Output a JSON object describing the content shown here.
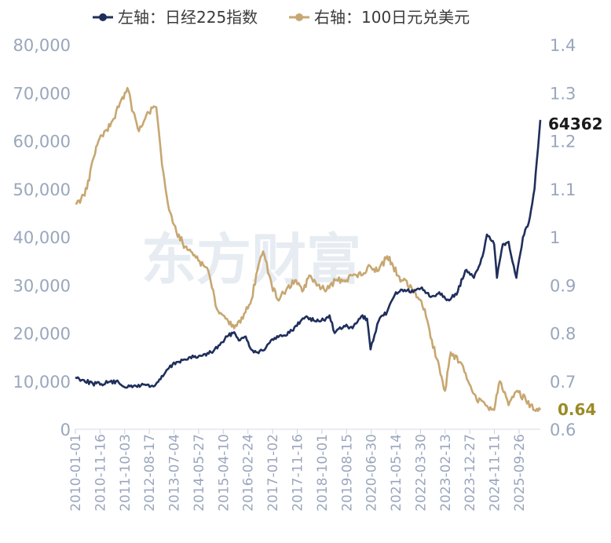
{
  "legend": {
    "left_series": "左轴：日经225指数",
    "right_series": "右轴：100日元兑美元"
  },
  "watermark": "东方财富",
  "end_labels": {
    "left_value": "64362",
    "right_value": "0.64"
  },
  "colors": {
    "nikkei": "#1f2f5c",
    "jpyusd": "#c7a771",
    "axis_text": "#9aa6bd",
    "right_end_label": "#9b8a25"
  },
  "chart_data": {
    "type": "line",
    "title": "",
    "x_tick_labels": [
      "2010-01-01",
      "2010-11-16",
      "2011-10-03",
      "2012-08-17",
      "2013-07-04",
      "2014-05-27",
      "2015-04-10",
      "2016-02-24",
      "2017-01-02",
      "2017-11-16",
      "2018-10-01",
      "2019-08-15",
      "2020-06-30",
      "2021-05-14",
      "2022-03-30",
      "2023-02-13",
      "2023-12-27",
      "2024-11-11",
      "2025-09-26"
    ],
    "left_axis": {
      "min": 0,
      "max": 80000,
      "ticks": [
        "0",
        "10,000",
        "20,000",
        "30,000",
        "40,000",
        "50,000",
        "60,000",
        "70,000",
        "80,000"
      ]
    },
    "right_axis": {
      "min": 0.6,
      "max": 1.4,
      "ticks": [
        "0.6",
        "0.7",
        "0.8",
        "0.9",
        "1",
        "1.1",
        "1.2",
        "1.3",
        "1.4"
      ]
    },
    "series": [
      {
        "name": "左轴：日经225指数",
        "axis": "left",
        "x": [
          2010.0,
          2010.3,
          2010.6,
          2010.9,
          2011.2,
          2011.5,
          2011.8,
          2012.1,
          2012.4,
          2012.7,
          2012.95,
          2013.2,
          2013.5,
          2013.8,
          2014.1,
          2014.4,
          2014.7,
          2015.0,
          2015.3,
          2015.5,
          2015.7,
          2015.9,
          2016.1,
          2016.3,
          2016.6,
          2016.9,
          2017.2,
          2017.5,
          2017.8,
          2018.0,
          2018.3,
          2018.6,
          2018.8,
          2018.98,
          2019.3,
          2019.6,
          2019.9,
          2020.1,
          2020.22,
          2020.5,
          2020.8,
          2021.1,
          2021.4,
          2021.7,
          2022.0,
          2022.3,
          2022.6,
          2022.9,
          2023.2,
          2023.5,
          2023.8,
          2024.1,
          2024.25,
          2024.5,
          2024.6,
          2024.8,
          2025.0,
          2025.27,
          2025.5,
          2025.7,
          2025.9,
          2026.1
        ],
        "values": [
          10800,
          10200,
          9500,
          9400,
          9900,
          9700,
          8700,
          9000,
          9300,
          8900,
          10400,
          12500,
          14000,
          14500,
          15000,
          15300,
          16000,
          17500,
          19500,
          20200,
          18500,
          19300,
          16500,
          16000,
          17000,
          19000,
          19500,
          20500,
          22500,
          23500,
          22500,
          22700,
          23700,
          20000,
          21500,
          21000,
          23500,
          23000,
          16600,
          22500,
          24500,
          28500,
          29000,
          28500,
          29500,
          27500,
          28500,
          27000,
          28000,
          33000,
          31500,
          36000,
          40500,
          38500,
          31500,
          38500,
          39000,
          31500,
          40000,
          43000,
          50000,
          64362
        ]
      },
      {
        "name": "右轴：100日元兑美元",
        "axis": "right",
        "x": [
          2010.0,
          2010.2,
          2010.4,
          2010.6,
          2010.8,
          2011.0,
          2011.2,
          2011.5,
          2011.8,
          2012.0,
          2012.2,
          2012.5,
          2012.8,
          2013.0,
          2013.2,
          2013.5,
          2013.8,
          2014.0,
          2014.3,
          2014.6,
          2014.9,
          2015.2,
          2015.5,
          2015.8,
          2016.1,
          2016.3,
          2016.5,
          2016.8,
          2017.0,
          2017.3,
          2017.6,
          2017.9,
          2018.1,
          2018.4,
          2018.7,
          2019.0,
          2019.3,
          2019.6,
          2019.9,
          2020.2,
          2020.5,
          2020.8,
          2021.0,
          2021.3,
          2021.6,
          2021.9,
          2022.1,
          2022.3,
          2022.6,
          2022.8,
          2023.0,
          2023.3,
          2023.6,
          2023.9,
          2024.2,
          2024.5,
          2024.7,
          2025.0,
          2025.3,
          2025.6,
          2025.9,
          2026.1
        ],
        "values": [
          1.07,
          1.08,
          1.1,
          1.16,
          1.2,
          1.22,
          1.23,
          1.27,
          1.31,
          1.26,
          1.22,
          1.26,
          1.27,
          1.15,
          1.07,
          1.01,
          0.98,
          0.97,
          0.95,
          0.93,
          0.85,
          0.83,
          0.81,
          0.83,
          0.87,
          0.93,
          0.97,
          0.9,
          0.87,
          0.89,
          0.91,
          0.89,
          0.92,
          0.9,
          0.89,
          0.91,
          0.91,
          0.92,
          0.92,
          0.94,
          0.93,
          0.96,
          0.94,
          0.91,
          0.9,
          0.87,
          0.85,
          0.79,
          0.73,
          0.68,
          0.76,
          0.74,
          0.7,
          0.66,
          0.65,
          0.64,
          0.7,
          0.65,
          0.68,
          0.66,
          0.64,
          0.64
        ]
      }
    ]
  }
}
